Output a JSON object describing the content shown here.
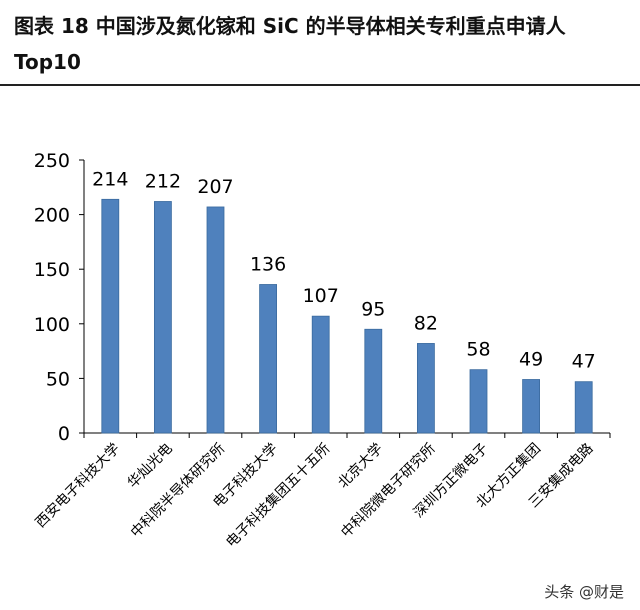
{
  "title": "图表 18  中国涉及氮化镓和 SiC 的半导体相关专利重点申请人 Top10",
  "watermark": "头条 @财是",
  "colors": {
    "bar": "#4F81BD",
    "bar_edge": "#3A6A9E",
    "axis": "#000000"
  },
  "chart_data": {
    "type": "bar",
    "title": "图表 18  中国涉及氮化镓和 SiC 的半导体相关专利重点申请人 Top10",
    "xlabel": "",
    "ylabel": "",
    "ylim": [
      0,
      250
    ],
    "yticks": [
      0,
      50,
      100,
      150,
      200,
      250
    ],
    "grid": false,
    "categories": [
      "西安电子科技大学",
      "华灿光电",
      "中科院半导体研究所",
      "电子科技大学",
      "电子科技集团五十五所",
      "北京大学",
      "中科院微电子研究所",
      "深圳方正微电子",
      "北大方正集团",
      "三安集成电路"
    ],
    "values": [
      214,
      212,
      207,
      136,
      107,
      95,
      82,
      58,
      49,
      47
    ]
  }
}
